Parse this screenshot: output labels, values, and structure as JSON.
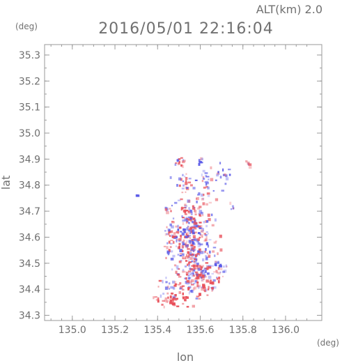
{
  "header": {
    "altitude_label": "ALT(km) 2.0",
    "datetime": "2016/05/01 22:16:04"
  },
  "chart_data": {
    "type": "heatmap",
    "title": "2016/05/01 22:16:04",
    "xlabel": "lon",
    "ylabel": "lat",
    "x_unit": "(deg)",
    "y_unit": "(deg)",
    "xlim": [
      134.87,
      136.17
    ],
    "ylim": [
      34.28,
      35.34
    ],
    "x_ticks": [
      "135.0",
      "135.2",
      "135.4",
      "135.6",
      "135.8",
      "136.0"
    ],
    "y_ticks": [
      "34.3",
      "34.4",
      "34.5",
      "34.6",
      "34.7",
      "34.8",
      "34.9",
      "35.0",
      "35.1",
      "35.2",
      "35.3"
    ],
    "grid": false,
    "colors": {
      "positive": "#e8505a",
      "negative": "#5a5ae8",
      "axis": "#9a9a9a",
      "text": "#6f6f6f"
    },
    "clusters": [
      {
        "lon": 135.5,
        "lat": 34.9,
        "slon": 0.015,
        "slat": 0.01,
        "n": 14,
        "bias": 0.2
      },
      {
        "lon": 135.6,
        "lat": 34.9,
        "slon": 0.008,
        "slat": 0.008,
        "n": 6,
        "bias": -0.8
      },
      {
        "lon": 135.82,
        "lat": 34.89,
        "slon": 0.01,
        "slat": 0.008,
        "n": 6,
        "bias": 0.5
      },
      {
        "lon": 135.3,
        "lat": 34.76,
        "slon": 0.005,
        "slat": 0.004,
        "n": 3,
        "bias": -0.6
      },
      {
        "lon": 135.52,
        "lat": 34.82,
        "slon": 0.025,
        "slat": 0.025,
        "n": 24,
        "bias": 0.1
      },
      {
        "lon": 135.63,
        "lat": 34.81,
        "slon": 0.03,
        "slat": 0.03,
        "n": 30,
        "bias": -0.2
      },
      {
        "lon": 135.7,
        "lat": 34.84,
        "slon": 0.015,
        "slat": 0.02,
        "n": 12,
        "bias": -0.6
      },
      {
        "lon": 135.75,
        "lat": 34.72,
        "slon": 0.01,
        "slat": 0.01,
        "n": 5,
        "bias": 0.0
      },
      {
        "lon": 135.44,
        "lat": 34.71,
        "slon": 0.01,
        "slat": 0.01,
        "n": 8,
        "bias": 0.0
      },
      {
        "lon": 135.55,
        "lat": 34.68,
        "slon": 0.05,
        "slat": 0.04,
        "n": 110,
        "bias": 0.3
      },
      {
        "lon": 135.55,
        "lat": 34.6,
        "slon": 0.055,
        "slat": 0.04,
        "n": 130,
        "bias": -0.1
      },
      {
        "lon": 135.57,
        "lat": 34.53,
        "slon": 0.05,
        "slat": 0.03,
        "n": 90,
        "bias": 0.2
      },
      {
        "lon": 135.6,
        "lat": 34.47,
        "slon": 0.055,
        "slat": 0.025,
        "n": 80,
        "bias": 0.1
      },
      {
        "lon": 135.52,
        "lat": 34.42,
        "slon": 0.06,
        "slat": 0.02,
        "n": 55,
        "bias": 0.3
      },
      {
        "lon": 135.47,
        "lat": 34.36,
        "slon": 0.05,
        "slat": 0.015,
        "n": 45,
        "bias": 0.6
      },
      {
        "lon": 135.63,
        "lat": 34.41,
        "slon": 0.02,
        "slat": 0.012,
        "n": 18,
        "bias": 0.7
      },
      {
        "lon": 135.46,
        "lat": 34.62,
        "slon": 0.012,
        "slat": 0.018,
        "n": 14,
        "bias": 0.2
      },
      {
        "lon": 135.44,
        "lat": 34.55,
        "slon": 0.01,
        "slat": 0.012,
        "n": 8,
        "bias": 0.1
      },
      {
        "lon": 135.69,
        "lat": 34.49,
        "slon": 0.02,
        "slat": 0.012,
        "n": 18,
        "bias": -0.3
      }
    ]
  }
}
